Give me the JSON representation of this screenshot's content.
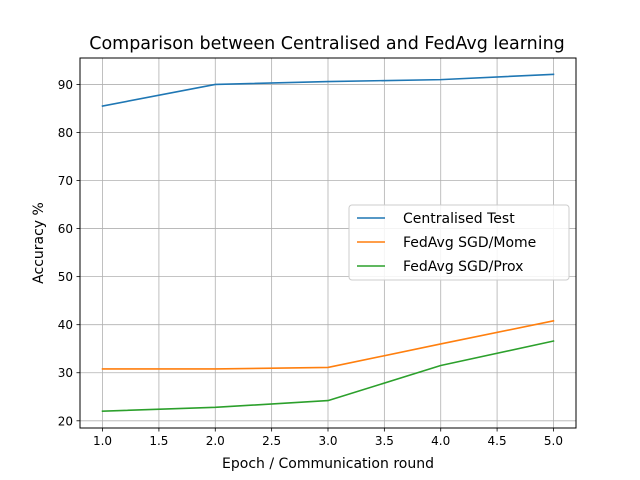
{
  "chart_data": {
    "type": "line",
    "title": "Comparison between Centralised and FedAvg learning",
    "xlabel": "Epoch / Communication round",
    "ylabel": "Accuracy %",
    "xlim": [
      0.8,
      5.2
    ],
    "ylim": [
      18.5,
      95.5
    ],
    "xticks": [
      1.0,
      1.5,
      2.0,
      2.5,
      3.0,
      3.5,
      4.0,
      4.5,
      5.0
    ],
    "xtick_labels": [
      "1.0",
      "1.5",
      "2.0",
      "2.5",
      "3.0",
      "3.5",
      "4.0",
      "4.5",
      "5.0"
    ],
    "yticks": [
      20,
      30,
      40,
      50,
      60,
      70,
      80,
      90
    ],
    "ytick_labels": [
      "20",
      "30",
      "40",
      "50",
      "60",
      "70",
      "80",
      "90"
    ],
    "grid": true,
    "legend_position": "center-right",
    "x": [
      1,
      2,
      3,
      4,
      5
    ],
    "series": [
      {
        "name": "Centralised Test",
        "color": "#1f77b4",
        "values": [
          85.5,
          90.0,
          90.6,
          91.0,
          92.1
        ]
      },
      {
        "name": "FedAvg SGD/Mome",
        "color": "#ff7f0e",
        "values": [
          30.8,
          30.8,
          31.1,
          36.0,
          40.8
        ]
      },
      {
        "name": "FedAvg SGD/Prox",
        "color": "#2ca02c",
        "values": [
          22.0,
          22.8,
          24.2,
          31.5,
          36.6
        ]
      }
    ]
  }
}
